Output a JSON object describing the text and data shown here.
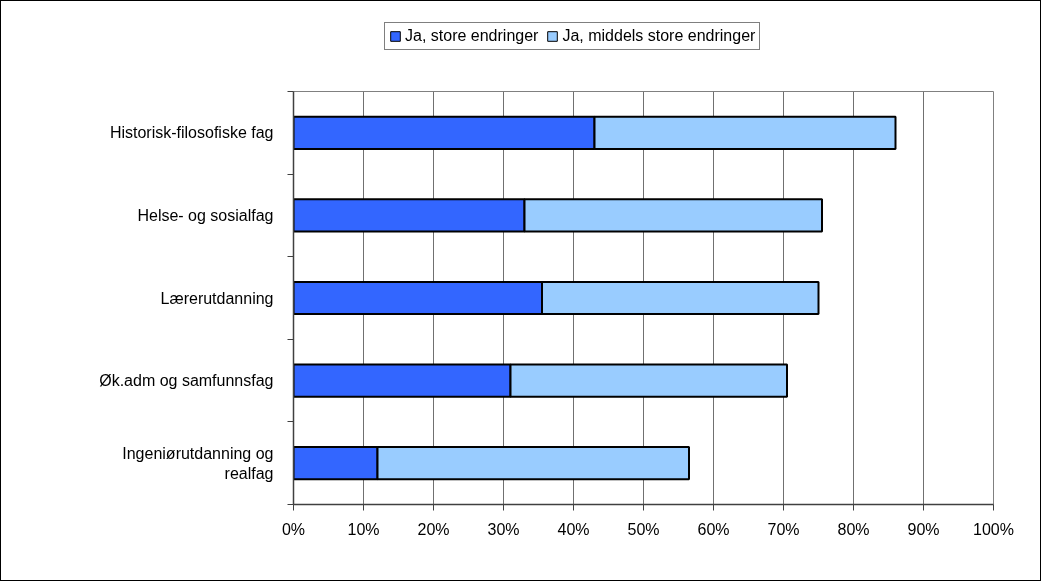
{
  "chart_data": {
    "type": "bar",
    "orientation": "horizontal",
    "stacked": true,
    "categories": [
      "Historisk-filosofiske fag",
      "Helse- og sosialfag",
      "Lærerutdanning",
      "Øk.adm og samfunnsfag",
      "Ingeniørutdanning og realfag"
    ],
    "series": [
      {
        "name": "Ja, store endringer",
        "color": "#3366ff",
        "values": [
          43,
          33,
          35.5,
          31,
          12
        ]
      },
      {
        "name": "Ja, middels store endringer",
        "color": "#99ccff",
        "values": [
          43,
          42.5,
          39.5,
          39.5,
          44.5
        ]
      }
    ],
    "xlim": [
      0,
      100
    ],
    "xticks": [
      {
        "value": 0,
        "label": "0%"
      },
      {
        "value": 10,
        "label": "10%"
      },
      {
        "value": 20,
        "label": "20%"
      },
      {
        "value": 30,
        "label": "30%"
      },
      {
        "value": 40,
        "label": "40%"
      },
      {
        "value": 50,
        "label": "50%"
      },
      {
        "value": 60,
        "label": "60%"
      },
      {
        "value": 70,
        "label": "70%"
      },
      {
        "value": 80,
        "label": "80%"
      },
      {
        "value": 90,
        "label": "90%"
      },
      {
        "value": 100,
        "label": "100%"
      }
    ],
    "grid": "x",
    "legend": "top"
  }
}
